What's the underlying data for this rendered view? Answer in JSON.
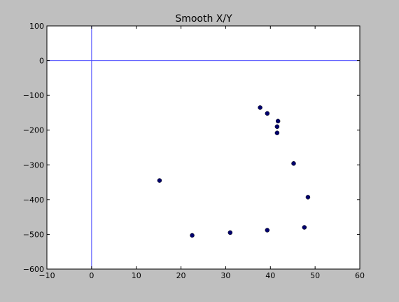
{
  "chart_data": {
    "type": "scatter",
    "title": "Smooth X/Y",
    "xlabel": "",
    "ylabel": "",
    "xlim": [
      -10,
      60
    ],
    "ylim": [
      -600,
      100
    ],
    "xticks": [
      -10,
      0,
      10,
      20,
      30,
      40,
      50,
      60
    ],
    "yticks": [
      100,
      0,
      -100,
      -200,
      -300,
      -400,
      -500,
      -600
    ],
    "xtick_labels": [
      "−10",
      "0",
      "10",
      "20",
      "30",
      "40",
      "50",
      "60"
    ],
    "ytick_labels": [
      "100",
      "0",
      "−100",
      "−200",
      "−300",
      "−400",
      "−500",
      "−600"
    ],
    "grid": false,
    "reference_lines": {
      "x": 0,
      "y": 0,
      "color": "#4444ff"
    },
    "point_color": "#00006e",
    "points": [
      {
        "x": 15.2,
        "y": -345
      },
      {
        "x": 22.5,
        "y": -503
      },
      {
        "x": 31.0,
        "y": -495
      },
      {
        "x": 37.7,
        "y": -135
      },
      {
        "x": 39.3,
        "y": -152
      },
      {
        "x": 39.3,
        "y": -488
      },
      {
        "x": 41.7,
        "y": -174
      },
      {
        "x": 41.5,
        "y": -190
      },
      {
        "x": 41.5,
        "y": -208
      },
      {
        "x": 45.2,
        "y": -296
      },
      {
        "x": 47.6,
        "y": -480
      },
      {
        "x": 48.4,
        "y": -393
      }
    ]
  }
}
